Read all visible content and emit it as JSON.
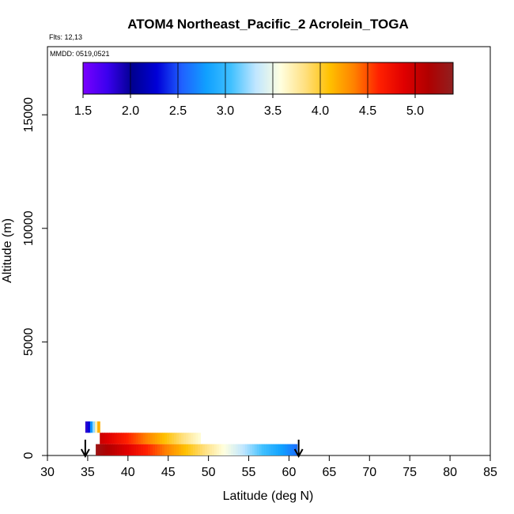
{
  "chart_data": {
    "type": "heatmap",
    "title": "ATOM4 Northeast_Pacific_2 Acrolein_TOGA",
    "flights_label": "Flts: 12,13",
    "dates_label": "MMDD: 0519,0521",
    "xlabel": "Latitude (deg N)",
    "ylabel": "Altitude (m)",
    "xlim": [
      30,
      85
    ],
    "ylim": [
      0,
      18000
    ],
    "x_ticks": [
      "30",
      "35",
      "40",
      "45",
      "50",
      "55",
      "60",
      "65",
      "70",
      "75",
      "80",
      "85"
    ],
    "y_ticks": [
      "0",
      "5000",
      "10000",
      "15000"
    ],
    "colorbar": {
      "range": [
        1.5,
        5.4
      ],
      "ticks": [
        "1.5",
        "2.0",
        "2.5",
        "3.0",
        "3.5",
        "4.0",
        "4.5",
        "5.0"
      ],
      "colors": [
        "#7a00ff",
        "#3a00ee",
        "#000090",
        "#0000d8",
        "#2060ff",
        "#10a0ff",
        "#40c0ff",
        "#c0e6ff",
        "#ffffe0",
        "#ffe080",
        "#ffc000",
        "#ff8000",
        "#ff2000",
        "#e00000",
        "#b00000",
        "#902020"
      ]
    },
    "layers": [
      {
        "lat_range": [
          36,
          61
        ],
        "alt_range": [
          0,
          500
        ],
        "value_start": 5.3,
        "value_end": 2.6
      },
      {
        "lat_range": [
          36.5,
          49
        ],
        "alt_range": [
          500,
          1000
        ],
        "value_start": 5.0,
        "value_end": 3.6
      },
      {
        "lat_range": [
          34.7,
          36.5
        ],
        "alt_range": [
          1000,
          1500
        ],
        "value_start": 1.6,
        "value_end": 4.4
      }
    ],
    "arrows_lat": [
      34.7,
      61.2
    ]
  }
}
